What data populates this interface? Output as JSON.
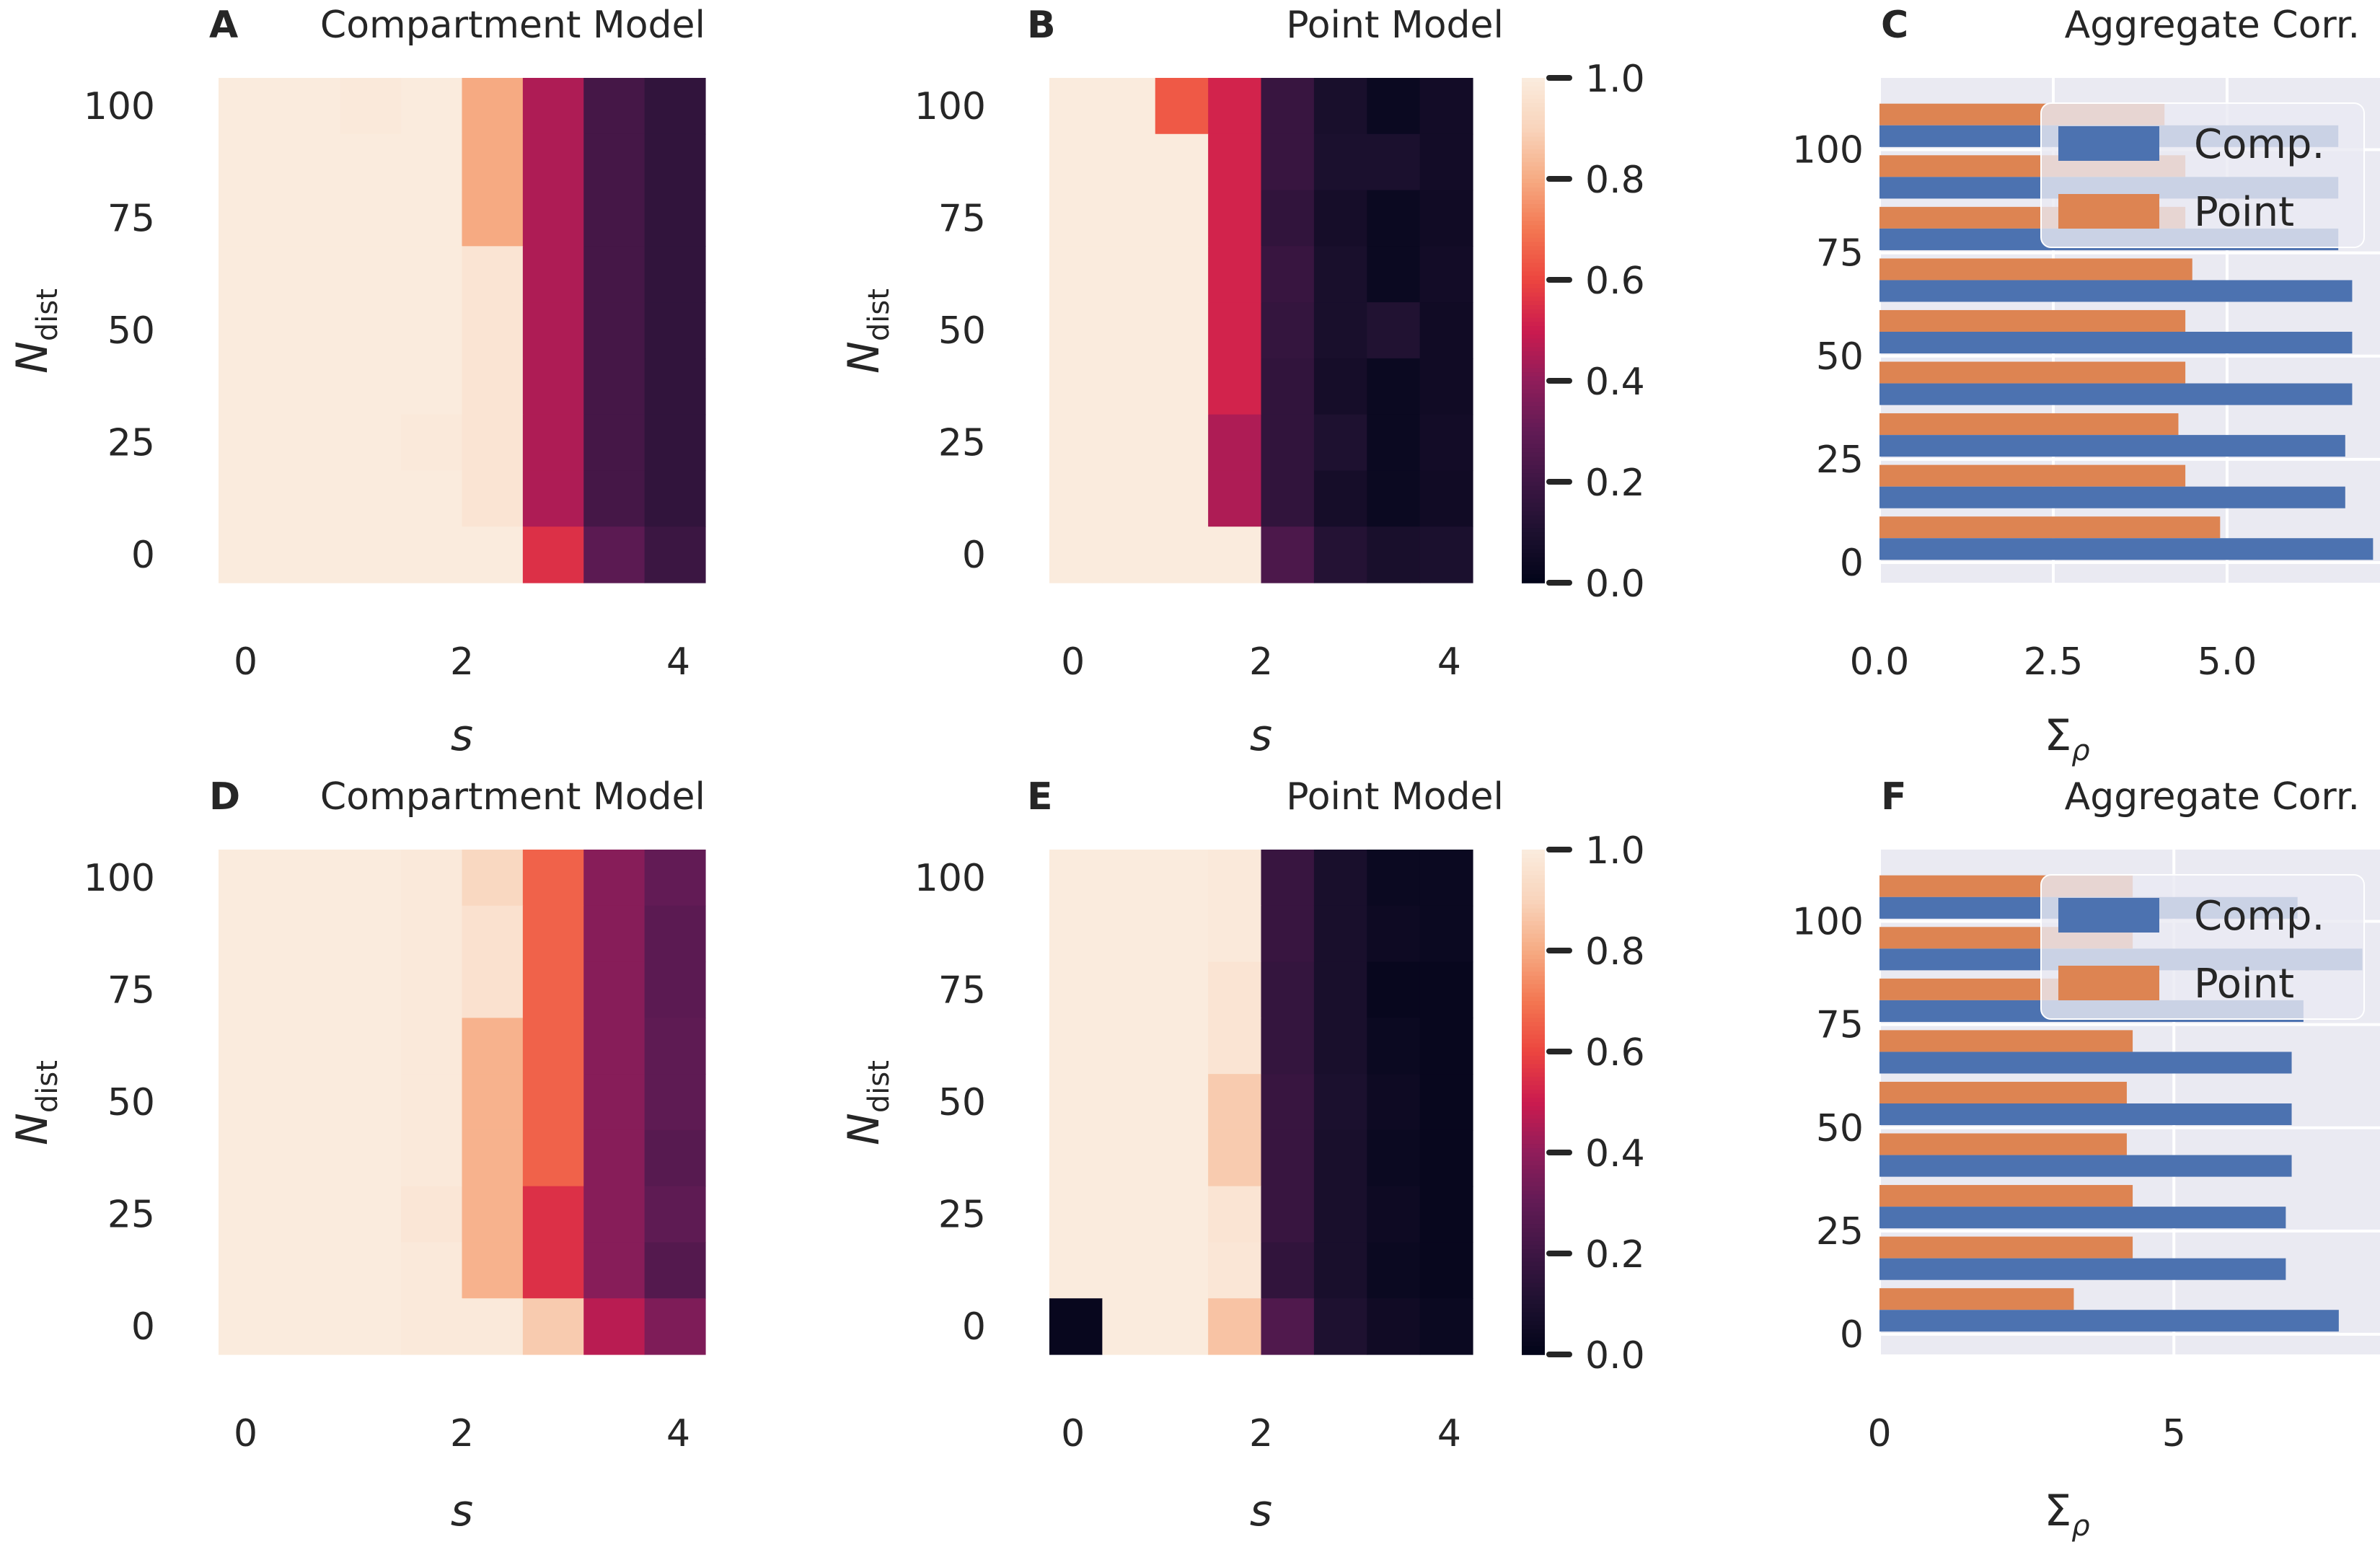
{
  "chart_data": [
    {
      "panel": "A",
      "type": "heatmap",
      "title": "Compartment Model",
      "xlabel": "s",
      "ylabel": "N",
      "ylabel_sub": "dist",
      "x_ticks": [
        "0",
        "2",
        "4"
      ],
      "y_ticks": [
        "100",
        "75",
        "50",
        "25",
        "0"
      ],
      "colormap": "rocket",
      "vmin": 0.0,
      "vmax": 1.0,
      "values": [
        [
          1.0,
          1.0,
          0.99,
          1.0,
          0.8,
          0.45,
          0.22,
          0.16
        ],
        [
          1.0,
          1.0,
          1.0,
          1.0,
          0.8,
          0.45,
          0.22,
          0.16
        ],
        [
          1.0,
          1.0,
          1.0,
          1.0,
          0.8,
          0.45,
          0.22,
          0.16
        ],
        [
          1.0,
          1.0,
          1.0,
          1.0,
          0.97,
          0.45,
          0.22,
          0.16
        ],
        [
          1.0,
          1.0,
          1.0,
          1.0,
          0.97,
          0.45,
          0.22,
          0.16
        ],
        [
          1.0,
          1.0,
          1.0,
          1.0,
          0.97,
          0.45,
          0.22,
          0.16
        ],
        [
          1.0,
          1.0,
          1.0,
          0.99,
          0.97,
          0.45,
          0.22,
          0.16
        ],
        [
          1.0,
          1.0,
          1.0,
          1.0,
          0.97,
          0.45,
          0.22,
          0.16
        ],
        [
          1.0,
          1.0,
          1.0,
          1.0,
          1.0,
          0.55,
          0.28,
          0.19
        ]
      ]
    },
    {
      "panel": "B",
      "type": "heatmap",
      "title": "Point Model",
      "xlabel": "s",
      "ylabel": "N",
      "ylabel_sub": "dist",
      "x_ticks": [
        "0",
        "2",
        "4"
      ],
      "y_ticks": [
        "100",
        "75",
        "50",
        "25",
        "0"
      ],
      "colormap": "rocket",
      "vmin": 0.0,
      "vmax": 1.0,
      "colorbar_ticks": [
        "1.0",
        "0.8",
        "0.6",
        "0.4",
        "0.2",
        "0.0"
      ],
      "values": [
        [
          1.0,
          1.0,
          0.64,
          0.52,
          0.18,
          0.08,
          0.03,
          0.06
        ],
        [
          1.0,
          1.0,
          1.0,
          0.52,
          0.18,
          0.09,
          0.09,
          0.06
        ],
        [
          1.0,
          1.0,
          1.0,
          0.52,
          0.16,
          0.07,
          0.03,
          0.05
        ],
        [
          1.0,
          1.0,
          1.0,
          0.52,
          0.18,
          0.08,
          0.03,
          0.06
        ],
        [
          1.0,
          1.0,
          1.0,
          0.52,
          0.17,
          0.08,
          0.11,
          0.05
        ],
        [
          1.0,
          1.0,
          1.0,
          0.52,
          0.16,
          0.07,
          0.03,
          0.05
        ],
        [
          1.0,
          1.0,
          1.0,
          0.45,
          0.16,
          0.1,
          0.03,
          0.06
        ],
        [
          1.0,
          1.0,
          1.0,
          0.45,
          0.16,
          0.07,
          0.03,
          0.05
        ],
        [
          1.0,
          1.0,
          1.0,
          1.0,
          0.24,
          0.12,
          0.08,
          0.09
        ]
      ]
    },
    {
      "panel": "C",
      "type": "bar",
      "orientation": "horizontal",
      "title": "Aggregate Corr.",
      "xlabel": "Σ",
      "xlabel_sub": "ρ",
      "x_ticks": [
        "0.0",
        "2.5",
        "5.0"
      ],
      "x_tick_values": [
        0,
        2.5,
        5.0
      ],
      "xlim": [
        0,
        7.2
      ],
      "y_ticks": [
        "100",
        "75",
        "50",
        "25",
        "0"
      ],
      "categories": [
        "100",
        "",
        "75",
        "",
        "50",
        "",
        "25",
        "",
        "0"
      ],
      "series": [
        {
          "name": "Point",
          "values": [
            4.1,
            4.4,
            4.4,
            4.5,
            4.4,
            4.4,
            4.3,
            4.4,
            4.9
          ],
          "color": "#dd8452"
        },
        {
          "name": "Comp.",
          "values": [
            6.6,
            6.6,
            6.6,
            6.8,
            6.8,
            6.8,
            6.7,
            6.7,
            7.1
          ],
          "color": "#4c72b0"
        }
      ],
      "legend": [
        {
          "label": "Comp."
        },
        {
          "label": "Point"
        }
      ],
      "legend_position": "top-right"
    },
    {
      "panel": "D",
      "type": "heatmap",
      "title": "Compartment Model",
      "xlabel": "s",
      "ylabel": "N",
      "ylabel_sub": "dist",
      "x_ticks": [
        "0",
        "2",
        "4"
      ],
      "y_ticks": [
        "100",
        "75",
        "50",
        "25",
        "0"
      ],
      "colormap": "rocket",
      "vmin": 0.0,
      "vmax": 1.0,
      "values": [
        [
          1.0,
          1.0,
          1.0,
          0.99,
          0.92,
          0.66,
          0.38,
          0.3
        ],
        [
          1.0,
          1.0,
          1.0,
          0.99,
          0.96,
          0.66,
          0.38,
          0.28
        ],
        [
          1.0,
          1.0,
          1.0,
          0.99,
          0.96,
          0.66,
          0.38,
          0.28
        ],
        [
          1.0,
          1.0,
          1.0,
          0.99,
          0.82,
          0.66,
          0.38,
          0.29
        ],
        [
          1.0,
          1.0,
          1.0,
          0.99,
          0.82,
          0.66,
          0.38,
          0.29
        ],
        [
          1.0,
          1.0,
          1.0,
          0.99,
          0.82,
          0.66,
          0.38,
          0.27
        ],
        [
          1.0,
          1.0,
          1.0,
          0.98,
          0.82,
          0.55,
          0.38,
          0.29
        ],
        [
          1.0,
          1.0,
          1.0,
          0.99,
          0.82,
          0.55,
          0.38,
          0.26
        ],
        [
          1.0,
          1.0,
          1.0,
          0.99,
          0.99,
          0.88,
          0.47,
          0.36
        ]
      ]
    },
    {
      "panel": "E",
      "type": "heatmap",
      "title": "Point Model",
      "xlabel": "s",
      "ylabel": "N",
      "ylabel_sub": "dist",
      "x_ticks": [
        "0",
        "2",
        "4"
      ],
      "y_ticks": [
        "100",
        "75",
        "50",
        "25",
        "0"
      ],
      "colormap": "rocket",
      "vmin": 0.0,
      "vmax": 1.0,
      "colorbar_ticks": [
        "1.0",
        "0.8",
        "0.6",
        "0.4",
        "0.2",
        "0.0"
      ],
      "values": [
        [
          1.0,
          1.0,
          1.0,
          0.99,
          0.18,
          0.08,
          0.03,
          0.03
        ],
        [
          1.0,
          1.0,
          1.0,
          0.99,
          0.18,
          0.08,
          0.04,
          0.03
        ],
        [
          1.0,
          1.0,
          1.0,
          0.97,
          0.17,
          0.08,
          0.02,
          0.02
        ],
        [
          1.0,
          1.0,
          1.0,
          0.97,
          0.17,
          0.08,
          0.03,
          0.02
        ],
        [
          1.0,
          1.0,
          1.0,
          0.88,
          0.18,
          0.09,
          0.04,
          0.02
        ],
        [
          1.0,
          1.0,
          1.0,
          0.88,
          0.18,
          0.08,
          0.03,
          0.02
        ],
        [
          1.0,
          1.0,
          1.0,
          0.97,
          0.18,
          0.08,
          0.04,
          0.02
        ],
        [
          1.0,
          1.0,
          1.0,
          0.98,
          0.16,
          0.08,
          0.03,
          0.02
        ],
        [
          0.02,
          1.0,
          1.0,
          0.86,
          0.25,
          0.1,
          0.05,
          0.03
        ]
      ]
    },
    {
      "panel": "F",
      "type": "bar",
      "orientation": "horizontal",
      "title": "Aggregate Corr.",
      "xlabel": "Σ",
      "xlabel_sub": "ρ",
      "x_ticks": [
        "0",
        "5"
      ],
      "x_tick_values": [
        0,
        5
      ],
      "xlim": [
        0,
        8.5
      ],
      "y_ticks": [
        "100",
        "75",
        "50",
        "25",
        "0"
      ],
      "categories": [
        "100",
        "",
        "75",
        "",
        "50",
        "",
        "25",
        "",
        "0"
      ],
      "series": [
        {
          "name": "Point",
          "values": [
            4.3,
            4.3,
            4.3,
            4.3,
            4.2,
            4.2,
            4.3,
            4.3,
            3.3
          ],
          "color": "#dd8452"
        },
        {
          "name": "Comp.",
          "values": [
            7.1,
            8.2,
            7.2,
            7.0,
            7.0,
            7.0,
            6.9,
            6.9,
            7.8
          ],
          "color": "#4c72b0"
        }
      ],
      "legend": [
        {
          "label": "Comp."
        },
        {
          "label": "Point"
        }
      ],
      "legend_position": "top-right"
    }
  ]
}
